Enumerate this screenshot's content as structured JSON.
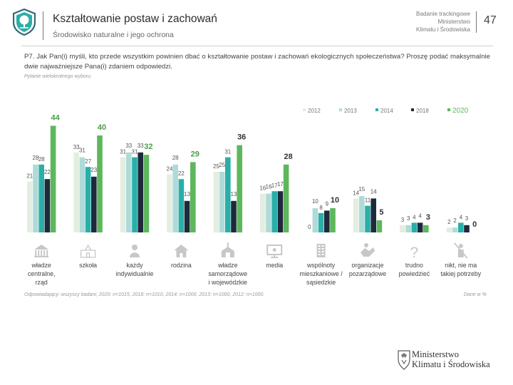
{
  "header": {
    "title": "Kształtowanie postaw i zachowań",
    "subtitle": "Środowisko naturalne i jego ochrona",
    "study_lines": [
      "Badanie trackingowe",
      "Ministerstwo",
      "Klimatu i Środowiska"
    ],
    "page_number": "47"
  },
  "question": {
    "text": "P7. Jak Pan(i) myśli, kto przede wszystkim powinien dbać o kształtowanie postaw i zachowań ekologicznych społeczeństwa? Proszę podać maksymalnie dwie najważniejsze Pana(i) zdaniem odpowiedzi.",
    "note": "Pytanie wielokrotnego wyboru."
  },
  "footer": {
    "footnote": "Odpowiadający: wszyscy badani; 2020: n=1015, 2018: n=1010, 2014: n=1000, 2013: n=1000, 2012: n=1000.",
    "base_label": "Dane w %"
  },
  "ministry": {
    "line1": "Ministerstwo",
    "line2": "Klimatu i Środowiska"
  },
  "colors": {
    "s2012": "#e4ede1",
    "s2013": "#aedbd9",
    "s2014": "#2aaea8",
    "s2018": "#1e2a3c",
    "s2020": "#5db75c",
    "icon": "#c7c7c7",
    "text": "#444444"
  },
  "chart_data": {
    "type": "bar",
    "series": [
      {
        "name": "2012",
        "values": [
          21,
          33,
          31,
          24,
          25,
          16,
          0,
          14,
          3,
          2
        ]
      },
      {
        "name": "2013",
        "values": [
          28,
          31,
          33,
          28,
          25,
          16,
          10,
          15,
          3,
          2
        ]
      },
      {
        "name": "2014",
        "values": [
          28,
          27,
          31,
          22,
          31,
          17,
          8,
          11,
          4,
          4
        ]
      },
      {
        "name": "2018",
        "values": [
          22,
          23,
          33,
          13,
          13,
          17,
          9,
          14,
          4,
          3
        ]
      },
      {
        "name": "2020",
        "values": [
          44,
          40,
          32,
          29,
          36,
          28,
          10,
          5,
          3,
          0
        ]
      }
    ],
    "label_values": [
      [
        "21",
        "33",
        "31",
        "24",
        "25",
        "16",
        "0",
        "14",
        "3",
        "2"
      ],
      [
        "28",
        "31",
        "33",
        "28",
        "25",
        "16",
        "10",
        "15",
        "3",
        "2"
      ],
      [
        "28",
        "27",
        "31",
        "22",
        "31",
        "17",
        "8",
        "11",
        "4",
        "4"
      ],
      [
        "22",
        "23",
        "33",
        "13",
        "13",
        "17",
        "9",
        "14",
        "4",
        "3"
      ],
      [
        "44",
        "40",
        "32",
        "29",
        "36",
        "28",
        "10",
        "5",
        "3",
        "0"
      ]
    ],
    "category_lines": [
      [
        "władze",
        "centralne,",
        "rząd"
      ],
      [
        "szkoła"
      ],
      [
        "każdy",
        "indywidualnie"
      ],
      [
        "rodzina"
      ],
      [
        "władze",
        "samorządowe",
        "i wojewódzkie"
      ],
      [
        "media"
      ],
      [
        "wspólnoty",
        "mieszkaniowe /",
        "sąsiedzkie"
      ],
      [
        "organizacje",
        "pozarządowe"
      ],
      [
        "trudno",
        "powiedzieć"
      ],
      [
        "nikt, nie ma",
        "takiej potrzeby"
      ]
    ],
    "icons": [
      "government-icon",
      "school-icon",
      "person-icon",
      "family-home-icon",
      "local-government-icon",
      "media-monitor-icon",
      "apartment-building-icon",
      "ngo-hands-icon",
      "question-mark-icon",
      "no-need-icon"
    ],
    "legend_position": "top-right",
    "ylim": [
      0,
      50
    ],
    "grid": false
  }
}
